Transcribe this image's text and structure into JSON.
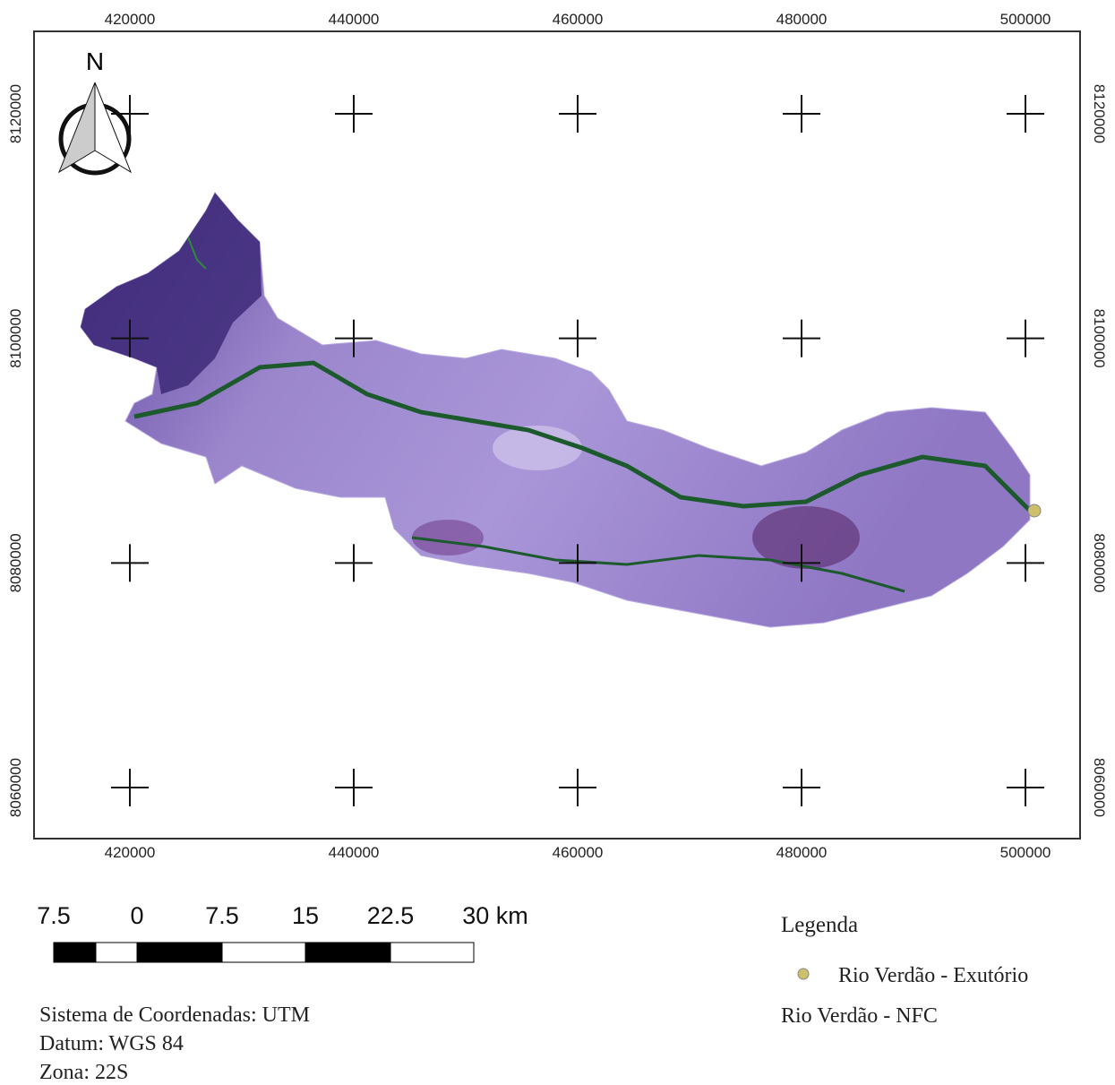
{
  "map": {
    "xticks": [
      420000,
      440000,
      460000,
      480000,
      500000
    ],
    "yticks": [
      8120000,
      8100000,
      8080000,
      8060000
    ],
    "north": "N",
    "scale_bar": {
      "labels": [
        "7.5",
        "0",
        "7.5",
        "15",
        "22.5",
        "30 km"
      ]
    },
    "legend": {
      "title": "Legenda",
      "items": [
        "Rio Verdão - Exutório",
        "Rio Verdão - NFC"
      ]
    },
    "info": [
      "Sistema de Coordenadas: UTM",
      "Datum: WGS 84",
      "Zona: 22S"
    ]
  }
}
